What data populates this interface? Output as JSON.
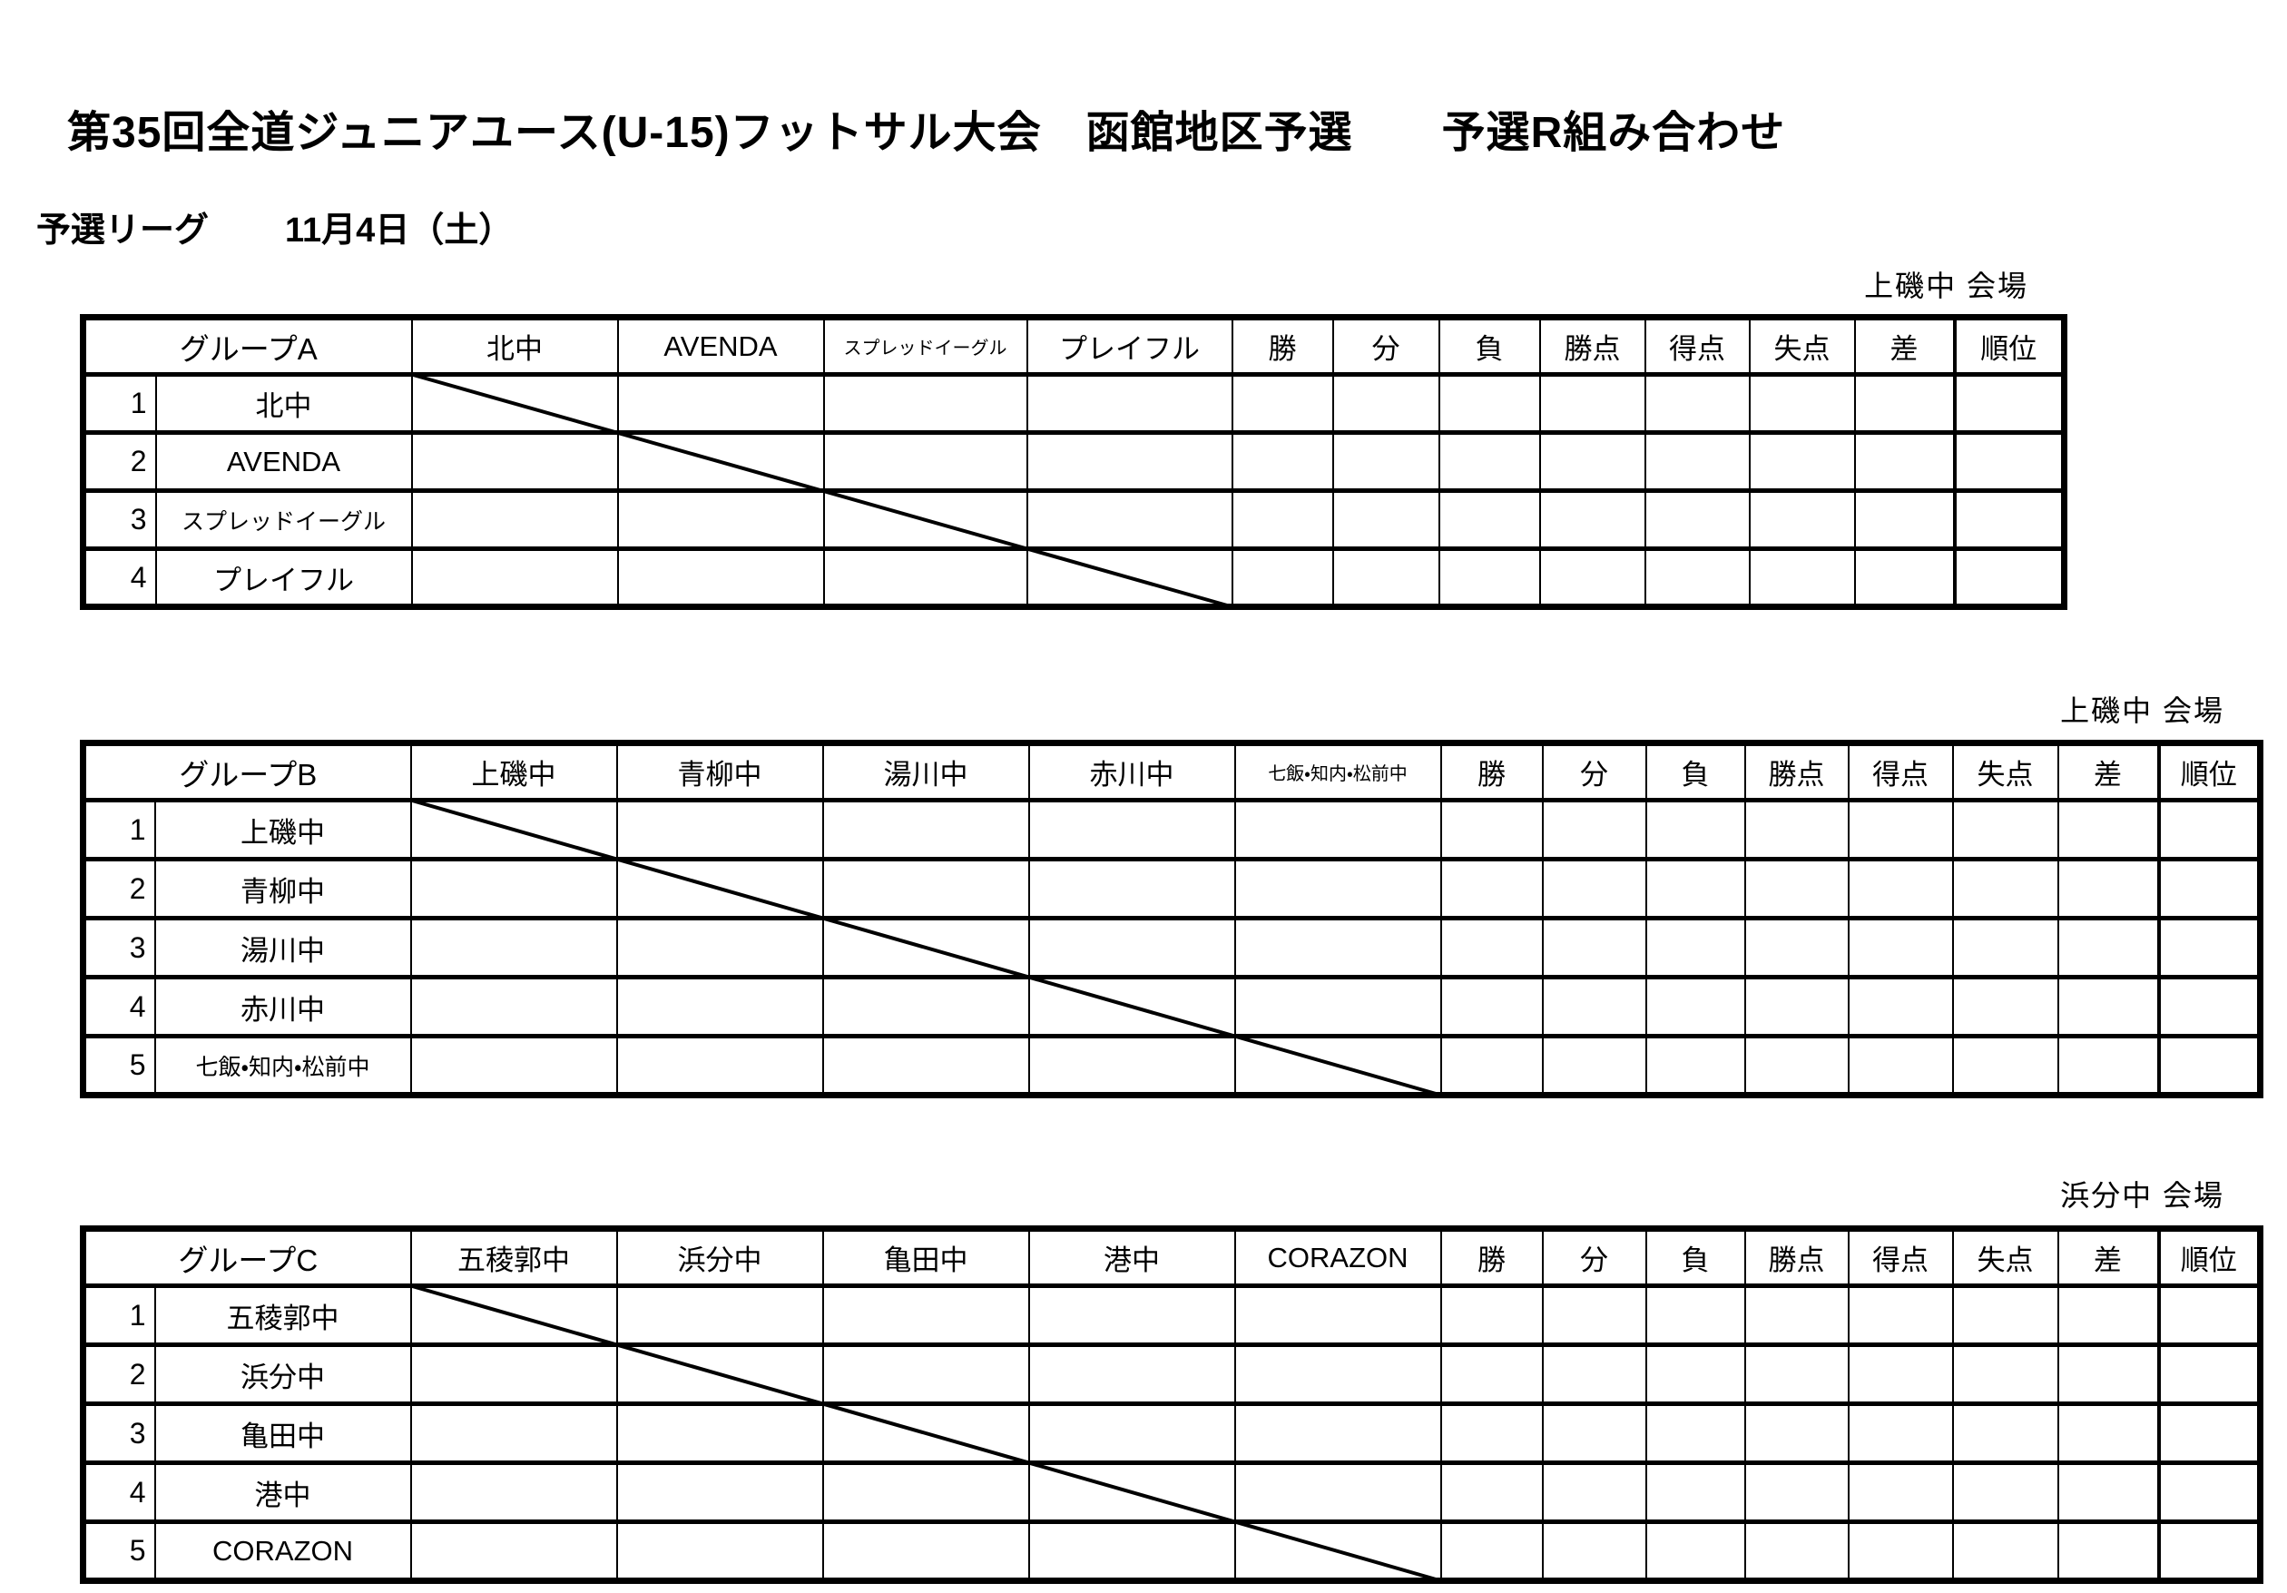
{
  "title": "第35回全道ジュニアユース(U-15)フットサル大会　函館地区予選　　予選R組み合わせ",
  "subtitle": {
    "label": "予選リーグ",
    "date": "11月4日（土）"
  },
  "stats_headers": [
    "勝",
    "分",
    "負",
    "勝点",
    "得点",
    "失点",
    "差",
    "順位"
  ],
  "groups": [
    {
      "label": "グループA",
      "venue": "上磯中 会場",
      "col_headers": [
        {
          "name": "北中"
        },
        {
          "name": "AVENDA"
        },
        {
          "name": "スプレッドイーグル",
          "small": true
        },
        {
          "name": "プレイフル"
        }
      ],
      "teams": [
        {
          "no": "1",
          "name": "北中"
        },
        {
          "no": "2",
          "name": "AVENDA"
        },
        {
          "no": "3",
          "name": "スプレッドイーグル",
          "small": true
        },
        {
          "no": "4",
          "name": "プレイフル"
        }
      ]
    },
    {
      "label": "グループB",
      "venue": "上磯中 会場",
      "col_headers": [
        {
          "name": "上磯中"
        },
        {
          "name": "青柳中"
        },
        {
          "name": "湯川中"
        },
        {
          "name": "赤川中"
        },
        {
          "name": "七飯・知内・松前中",
          "small": true
        }
      ],
      "teams": [
        {
          "no": "1",
          "name": "上磯中"
        },
        {
          "no": "2",
          "name": "青柳中"
        },
        {
          "no": "3",
          "name": "湯川中"
        },
        {
          "no": "4",
          "name": "赤川中"
        },
        {
          "no": "5",
          "name": "七飯・知内・松前中",
          "small": true
        }
      ]
    },
    {
      "label": "グループC",
      "venue": "浜分中 会場",
      "col_headers": [
        {
          "name": "五稜郭中"
        },
        {
          "name": "浜分中"
        },
        {
          "name": "亀田中"
        },
        {
          "name": "港中"
        },
        {
          "name": "CORAZON"
        }
      ],
      "teams": [
        {
          "no": "1",
          "name": "五稜郭中"
        },
        {
          "no": "2",
          "name": "浜分中"
        },
        {
          "no": "3",
          "name": "亀田中"
        },
        {
          "no": "4",
          "name": "港中"
        },
        {
          "no": "5",
          "name": "CORAZON"
        }
      ]
    }
  ]
}
